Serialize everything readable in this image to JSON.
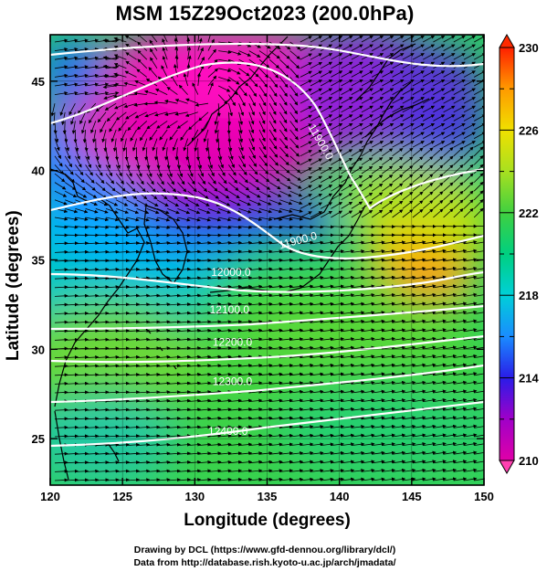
{
  "title": "MSM 15Z29Oct2023 (200.0hPa)",
  "x_label": "Longitude (degrees)",
  "y_label": "Latitude  (degrees)",
  "x_ticks": [
    120,
    125,
    130,
    135,
    140,
    145,
    150
  ],
  "y_ticks": [
    25,
    30,
    35,
    40,
    45
  ],
  "x_range": [
    120,
    150
  ],
  "y_range": [
    22.4,
    47.6
  ],
  "colorbar": {
    "min": 210,
    "max": 230,
    "tick_labels": [
      "230",
      "226",
      "222",
      "218",
      "214",
      "210"
    ],
    "tick_values": [
      230,
      226,
      222,
      218,
      214,
      210
    ]
  },
  "contour_labels": [
    {
      "text": "11900.0",
      "lon": 138.5,
      "lat": 41.5
    },
    {
      "text": "11900.0",
      "lon": 137.2,
      "lat": 35.9
    },
    {
      "text": "12000.0",
      "lon": 132.5,
      "lat": 34.1
    },
    {
      "text": "12100.0",
      "lon": 132.4,
      "lat": 32.0
    },
    {
      "text": "12200.0",
      "lon": 132.6,
      "lat": 30.2
    },
    {
      "text": "12300.0",
      "lon": 132.6,
      "lat": 28.0
    },
    {
      "text": "12400.0",
      "lon": 132.3,
      "lat": 25.2
    }
  ],
  "credits": [
    "Drawing by DCL (https://www.gfd-dennou.org/library/dcl/)",
    "Data from http://database.rish.kyoto-u.ac.jp/arch/jmadata/"
  ],
  "colors": {
    "frame": "#000000",
    "contour": "#ffffff",
    "vector": "#000000"
  }
}
